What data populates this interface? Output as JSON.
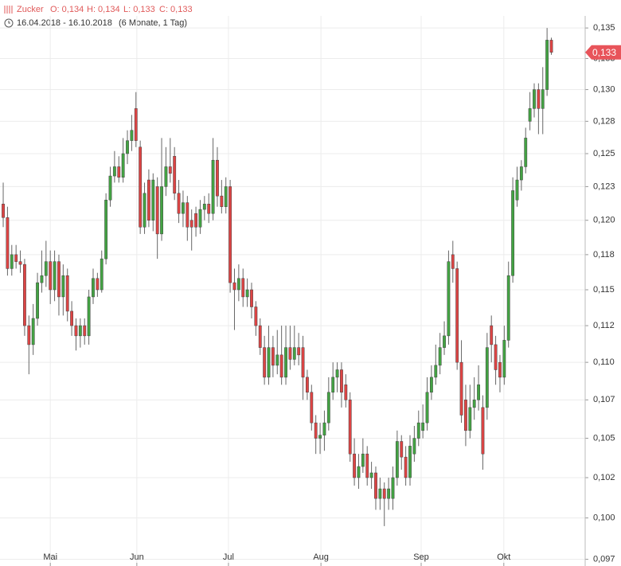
{
  "chart_data": {
    "type": "candlestick",
    "instrument": "Zucker",
    "ohlc_text": [
      "O: 0,134",
      "H: 0,134",
      "L: 0,133",
      "C: 0,133"
    ],
    "period": "16.04.2018 - 16.10.2018",
    "period_note": "(6 Monate, 1 Tag)",
    "log_scale": true,
    "grid": true,
    "up_color": "#43a343",
    "down_color": "#dd4444",
    "last_price": {
      "value": 0.133,
      "label": "0,133"
    },
    "last_price_color": "#e8545a",
    "xlim": [
      -0.75,
      135.9
    ],
    "xticks": [
      {
        "value": 11,
        "label": "Mai"
      },
      {
        "value": 31.2,
        "label": "Jun"
      },
      {
        "value": 52.6,
        "label": "Jul"
      },
      {
        "value": 74.2,
        "label": "Aug"
      },
      {
        "value": 97.6,
        "label": "Sep"
      },
      {
        "value": 116.9,
        "label": "Okt"
      }
    ],
    "ylim": [
      0.0971,
      0.136
    ],
    "yticks": [
      {
        "value": 0.0975,
        "label": "0,097"
      },
      {
        "value": 0.1,
        "label": "0,100"
      },
      {
        "value": 0.1025,
        "label": "0,102"
      },
      {
        "value": 0.105,
        "label": "0,105"
      },
      {
        "value": 0.1075,
        "label": "0,107"
      },
      {
        "value": 0.11,
        "label": "0,110"
      },
      {
        "value": 0.1125,
        "label": "0,112"
      },
      {
        "value": 0.115,
        "label": "0,115"
      },
      {
        "value": 0.1175,
        "label": "0,118"
      },
      {
        "value": 0.12,
        "label": "0,120"
      },
      {
        "value": 0.1225,
        "label": "0,123"
      },
      {
        "value": 0.125,
        "label": "0,125"
      },
      {
        "value": 0.1275,
        "label": "0,128"
      },
      {
        "value": 0.13,
        "label": "0,130"
      },
      {
        "value": 0.1325,
        "label": "0,133"
      },
      {
        "value": 0.135,
        "label": "0,135"
      }
    ],
    "candles": [
      [
        0.1212,
        0.1228,
        0.1195,
        0.1202
      ],
      [
        0.1202,
        0.121,
        0.116,
        0.1165
      ],
      [
        0.1165,
        0.1182,
        0.116,
        0.1175
      ],
      [
        0.1175,
        0.1182,
        0.1165,
        0.117
      ],
      [
        0.117,
        0.1178,
        0.1162,
        0.1168
      ],
      [
        0.1168,
        0.1172,
        0.1118,
        0.1125
      ],
      [
        0.1125,
        0.1132,
        0.1092,
        0.1112
      ],
      [
        0.1112,
        0.114,
        0.1105,
        0.113
      ],
      [
        0.113,
        0.1162,
        0.1125,
        0.1155
      ],
      [
        0.1155,
        0.1178,
        0.1148,
        0.116
      ],
      [
        0.116,
        0.1185,
        0.1152,
        0.117
      ],
      [
        0.117,
        0.1178,
        0.114,
        0.115
      ],
      [
        0.115,
        0.1178,
        0.1142,
        0.117
      ],
      [
        0.117,
        0.1175,
        0.1132,
        0.1145
      ],
      [
        0.1145,
        0.1168,
        0.1132,
        0.116
      ],
      [
        0.116,
        0.1165,
        0.1128,
        0.1135
      ],
      [
        0.1135,
        0.1142,
        0.1118,
        0.1125
      ],
      [
        0.1125,
        0.113,
        0.1108,
        0.1118
      ],
      [
        0.1118,
        0.113,
        0.111,
        0.1125
      ],
      [
        0.1125,
        0.113,
        0.1112,
        0.1118
      ],
      [
        0.1118,
        0.115,
        0.1112,
        0.1145
      ],
      [
        0.1145,
        0.1165,
        0.114,
        0.1158
      ],
      [
        0.1158,
        0.1162,
        0.1145,
        0.115
      ],
      [
        0.115,
        0.1178,
        0.1148,
        0.1172
      ],
      [
        0.1172,
        0.122,
        0.1168,
        0.1215
      ],
      [
        0.1215,
        0.124,
        0.121,
        0.1233
      ],
      [
        0.1233,
        0.1252,
        0.1228,
        0.124
      ],
      [
        0.124,
        0.1248,
        0.1228,
        0.1232
      ],
      [
        0.1232,
        0.1262,
        0.1228,
        0.125
      ],
      [
        0.125,
        0.1268,
        0.1242,
        0.126
      ],
      [
        0.126,
        0.128,
        0.1252,
        0.1268
      ],
      [
        0.1285,
        0.1298,
        0.1255,
        0.126
      ],
      [
        0.1255,
        0.126,
        0.119,
        0.1195
      ],
      [
        0.1195,
        0.1228,
        0.119,
        0.122
      ],
      [
        0.123,
        0.1238,
        0.1195,
        0.12
      ],
      [
        0.12,
        0.1235,
        0.1192,
        0.123
      ],
      [
        0.1225,
        0.1232,
        0.1172,
        0.119
      ],
      [
        0.119,
        0.1262,
        0.1185,
        0.1225
      ],
      [
        0.1225,
        0.1255,
        0.1218,
        0.124
      ],
      [
        0.124,
        0.1262,
        0.1228,
        0.1235
      ],
      [
        0.1248,
        0.1255,
        0.1215,
        0.122
      ],
      [
        0.122,
        0.123,
        0.1198,
        0.1205
      ],
      [
        0.1205,
        0.1222,
        0.1195,
        0.1213
      ],
      [
        0.1213,
        0.1218,
        0.1185,
        0.1195
      ],
      [
        0.12,
        0.1208,
        0.1178,
        0.1195
      ],
      [
        0.1205,
        0.121,
        0.1188,
        0.1195
      ],
      [
        0.1195,
        0.1215,
        0.119,
        0.1208
      ],
      [
        0.1208,
        0.1218,
        0.12,
        0.1212
      ],
      [
        0.1212,
        0.122,
        0.1198,
        0.1205
      ],
      [
        0.1205,
        0.1262,
        0.12,
        0.1245
      ],
      [
        0.1245,
        0.1255,
        0.121,
        0.1218
      ],
      [
        0.1218,
        0.123,
        0.1205,
        0.121
      ],
      [
        0.121,
        0.1232,
        0.1205,
        0.1225
      ],
      [
        0.1225,
        0.123,
        0.1148,
        0.1155
      ],
      [
        0.1155,
        0.1165,
        0.1122,
        0.115
      ],
      [
        0.115,
        0.1168,
        0.1142,
        0.1158
      ],
      [
        0.1158,
        0.1165,
        0.1138,
        0.1145
      ],
      [
        0.1145,
        0.1158,
        0.1138,
        0.115
      ],
      [
        0.115,
        0.1155,
        0.113,
        0.1138
      ],
      [
        0.1138,
        0.1142,
        0.1118,
        0.1125
      ],
      [
        0.1125,
        0.113,
        0.1105,
        0.111
      ],
      [
        0.111,
        0.1118,
        0.1085,
        0.109
      ],
      [
        0.109,
        0.1125,
        0.1085,
        0.111
      ],
      [
        0.111,
        0.1118,
        0.109,
        0.1098
      ],
      [
        0.1098,
        0.1122,
        0.1092,
        0.1105
      ],
      [
        0.1105,
        0.1125,
        0.1085,
        0.109
      ],
      [
        0.109,
        0.1125,
        0.1085,
        0.111
      ],
      [
        0.111,
        0.1125,
        0.1095,
        0.1102
      ],
      [
        0.1102,
        0.1125,
        0.1098,
        0.111
      ],
      [
        0.111,
        0.112,
        0.1098,
        0.1105
      ],
      [
        0.111,
        0.1118,
        0.1075,
        0.109
      ],
      [
        0.109,
        0.1095,
        0.1075,
        0.108
      ],
      [
        0.108,
        0.1085,
        0.1055,
        0.106
      ],
      [
        0.106,
        0.1065,
        0.104,
        0.105
      ],
      [
        0.105,
        0.106,
        0.104,
        0.1052
      ],
      [
        0.1052,
        0.1068,
        0.1042,
        0.106
      ],
      [
        0.106,
        0.109,
        0.1055,
        0.108
      ],
      [
        0.108,
        0.11,
        0.1075,
        0.109
      ],
      [
        0.109,
        0.11,
        0.108,
        0.1095
      ],
      [
        0.1095,
        0.11,
        0.107,
        0.108
      ],
      [
        0.1085,
        0.1092,
        0.107,
        0.1075
      ],
      [
        0.1075,
        0.108,
        0.1035,
        0.104
      ],
      [
        0.104,
        0.105,
        0.102,
        0.1025
      ],
      [
        0.1025,
        0.104,
        0.1018,
        0.1032
      ],
      [
        0.1032,
        0.105,
        0.1028,
        0.104
      ],
      [
        0.104,
        0.1045,
        0.102,
        0.1025
      ],
      [
        0.1025,
        0.1035,
        0.1018,
        0.1028
      ],
      [
        0.1028,
        0.1032,
        0.1005,
        0.1012
      ],
      [
        0.1012,
        0.1025,
        0.1005,
        0.1018
      ],
      [
        0.1018,
        0.1022,
        0.0995,
        0.1012
      ],
      [
        0.1012,
        0.1025,
        0.1005,
        0.1018
      ],
      [
        0.1012,
        0.1032,
        0.1005,
        0.1025
      ],
      [
        0.1025,
        0.1055,
        0.102,
        0.1048
      ],
      [
        0.1048,
        0.1052,
        0.103,
        0.1038
      ],
      [
        0.1038,
        0.1045,
        0.102,
        0.1025
      ],
      [
        0.1025,
        0.1052,
        0.102,
        0.1045
      ],
      [
        0.104,
        0.1058,
        0.1035,
        0.105
      ],
      [
        0.105,
        0.1068,
        0.1045,
        0.106
      ],
      [
        0.1055,
        0.1072,
        0.105,
        0.106
      ],
      [
        0.106,
        0.109,
        0.1055,
        0.108
      ],
      [
        0.108,
        0.1098,
        0.1075,
        0.109
      ],
      [
        0.109,
        0.1112,
        0.1085,
        0.1098
      ],
      [
        0.1098,
        0.112,
        0.1092,
        0.111
      ],
      [
        0.111,
        0.1128,
        0.1105,
        0.1118
      ],
      [
        0.1118,
        0.1178,
        0.1112,
        0.117
      ],
      [
        0.1175,
        0.1185,
        0.1155,
        0.1165
      ],
      [
        0.1165,
        0.117,
        0.1095,
        0.11
      ],
      [
        0.11,
        0.1115,
        0.106,
        0.1065
      ],
      [
        0.1075,
        0.1085,
        0.1045,
        0.1055
      ],
      [
        0.1055,
        0.1085,
        0.105,
        0.107
      ],
      [
        0.107,
        0.109,
        0.1062,
        0.1075
      ],
      [
        0.1075,
        0.1098,
        0.1068,
        0.1085
      ],
      [
        0.107,
        0.1078,
        0.103,
        0.104
      ],
      [
        0.107,
        0.112,
        0.1062,
        0.111
      ],
      [
        0.1125,
        0.1132,
        0.11,
        0.1112
      ],
      [
        0.1112,
        0.1118,
        0.1085,
        0.1095
      ],
      [
        0.11,
        0.1105,
        0.108,
        0.109
      ],
      [
        0.109,
        0.1125,
        0.1085,
        0.1115
      ],
      [
        0.1115,
        0.117,
        0.111,
        0.116
      ],
      [
        0.116,
        0.1232,
        0.1155,
        0.1222
      ],
      [
        0.1215,
        0.124,
        0.121,
        0.123
      ],
      [
        0.123,
        0.1245,
        0.1222,
        0.124
      ],
      [
        0.124,
        0.127,
        0.1235,
        0.1262
      ],
      [
        0.1275,
        0.1298,
        0.1268,
        0.1285
      ],
      [
        0.1285,
        0.1305,
        0.1278,
        0.13
      ],
      [
        0.13,
        0.1305,
        0.1265,
        0.1285
      ],
      [
        0.1285,
        0.1318,
        0.1265,
        0.13
      ],
      [
        0.13,
        0.135,
        0.1295,
        0.134
      ],
      [
        0.134,
        0.1342,
        0.1328,
        0.133
      ]
    ]
  }
}
